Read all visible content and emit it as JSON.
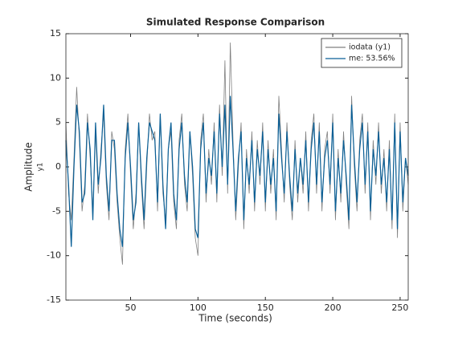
{
  "chart_data": {
    "type": "line",
    "title": "Simulated Response Comparison",
    "xlabel": "Time (seconds)",
    "ylabel": "Amplitude",
    "ysublabel": "y1",
    "x": [
      2,
      4,
      6,
      8,
      10,
      12,
      14,
      16,
      18,
      20,
      22,
      24,
      26,
      28,
      30,
      32,
      34,
      36,
      38,
      40,
      42,
      44,
      46,
      48,
      50,
      52,
      54,
      56,
      58,
      60,
      62,
      64,
      66,
      68,
      70,
      72,
      74,
      76,
      78,
      80,
      82,
      84,
      86,
      88,
      90,
      92,
      94,
      96,
      98,
      100,
      102,
      104,
      106,
      108,
      110,
      112,
      114,
      116,
      118,
      120,
      122,
      124,
      126,
      128,
      130,
      132,
      134,
      136,
      138,
      140,
      142,
      144,
      146,
      148,
      150,
      152,
      154,
      156,
      158,
      160,
      162,
      164,
      166,
      168,
      170,
      172,
      174,
      176,
      178,
      180,
      182,
      184,
      186,
      188,
      190,
      192,
      194,
      196,
      198,
      200,
      202,
      204,
      206,
      208,
      210,
      212,
      214,
      216,
      218,
      220,
      222,
      224,
      226,
      228,
      230,
      232,
      234,
      236,
      238,
      240,
      242,
      244,
      246,
      248,
      250,
      252,
      254,
      256
    ],
    "series": [
      {
        "name": "iodata (y1)",
        "color": "#808080",
        "values": [
          5,
          -3,
          -6,
          1,
          9,
          3,
          -5,
          -2,
          6,
          1,
          -5,
          4,
          -3,
          2,
          6,
          -2,
          -6,
          4,
          2,
          -4,
          -8,
          -11,
          2,
          6,
          -1,
          -7,
          -3,
          5,
          -2,
          -7,
          0,
          6,
          3,
          4,
          -5,
          6,
          -3,
          -6,
          2,
          4,
          -4,
          -7,
          3,
          6,
          -2,
          -5,
          4,
          -1,
          -8,
          -10,
          3,
          6,
          -4,
          2,
          -2,
          5,
          -4,
          7,
          -1,
          12,
          -3,
          14,
          3,
          -6,
          0,
          5,
          -7,
          2,
          -3,
          4,
          -5,
          3,
          -2,
          5,
          -5,
          3,
          -3,
          2,
          -6,
          8,
          2,
          -4,
          5,
          -2,
          -6,
          3,
          -4,
          1,
          -3,
          4,
          -5,
          3,
          6,
          -3,
          5,
          -5,
          2,
          4,
          -3,
          6,
          -6,
          2,
          -4,
          4,
          -2,
          -7,
          8,
          0,
          -5,
          3,
          6,
          -3,
          5,
          -6,
          3,
          -2,
          5,
          -3,
          2,
          -5,
          3,
          -7,
          6,
          -8,
          5,
          -5,
          1,
          -2
        ]
      },
      {
        "name": "me: 53.56%",
        "color": "#0a5f96",
        "values": [
          3,
          -2,
          -9,
          0,
          7,
          4,
          -4,
          -3,
          5,
          2,
          -6,
          5,
          -2,
          1,
          7,
          -1,
          -5,
          3,
          3,
          -3,
          -7,
          -9,
          1,
          5,
          0,
          -6,
          -4,
          5,
          -1,
          -6,
          1,
          5,
          4,
          3,
          -4,
          6,
          -2,
          -7,
          2,
          5,
          -3,
          -6,
          2,
          5,
          -1,
          -4,
          4,
          0,
          -7,
          -8,
          2,
          5,
          -3,
          1,
          -1,
          4,
          -3,
          6,
          0,
          7,
          -2,
          8,
          2,
          -5,
          1,
          4,
          -6,
          1,
          -2,
          3,
          -4,
          2,
          -1,
          4,
          -4,
          2,
          -2,
          1,
          -5,
          6,
          1,
          -3,
          4,
          -1,
          -5,
          2,
          -3,
          1,
          -2,
          3,
          -4,
          2,
          5,
          -2,
          4,
          -4,
          1,
          3,
          -2,
          5,
          -5,
          1,
          -3,
          3,
          -1,
          -6,
          7,
          1,
          -4,
          2,
          5,
          -2,
          4,
          -5,
          2,
          -1,
          4,
          -2,
          1,
          -4,
          2,
          -6,
          5,
          -7,
          4,
          -4,
          1,
          -1
        ]
      }
    ],
    "xlim": [
      2,
      256
    ],
    "ylim": [
      -15,
      15
    ],
    "xticks": [
      50,
      100,
      150,
      200,
      250
    ],
    "yticks": [
      -15,
      -10,
      -5,
      0,
      5,
      10,
      15
    ],
    "grid": false,
    "legend": "upper right"
  }
}
